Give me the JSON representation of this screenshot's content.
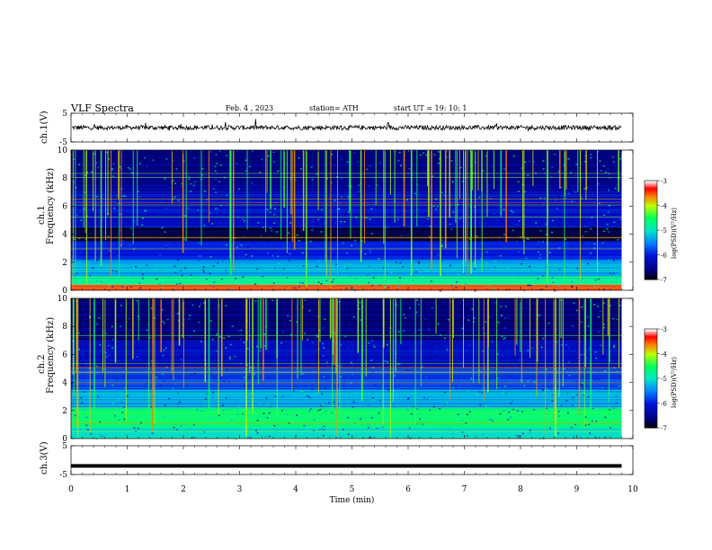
{
  "header": {
    "title": "VLF Spectra",
    "date": "Feb. 4 , 2023",
    "station": "station= ATH",
    "start_ut": "start UT = 19: 10: 1"
  },
  "panels": {
    "ch1_waveform": {
      "ylabel": "ch.1(V)",
      "ticks": [
        "5",
        "-5"
      ],
      "ylim": [
        -5,
        5
      ]
    },
    "ch1_spectrogram": {
      "ylabel_top": "ch.1",
      "ylabel_bottom": "Frequency (kHz)",
      "ticks": [
        "10",
        "8",
        "6",
        "4",
        "2",
        "0"
      ],
      "ylim": [
        0,
        10
      ]
    },
    "ch2_spectrogram": {
      "ylabel_top": "ch.2",
      "ylabel_bottom": "Frequency (kHz)",
      "ticks": [
        "10",
        "8",
        "6",
        "4",
        "2",
        "0"
      ],
      "ylim": [
        0,
        10
      ]
    },
    "ch3_waveform": {
      "ylabel": "ch.3(V)",
      "ticks": [
        "5",
        "-5"
      ],
      "ylim": [
        -5,
        5
      ]
    }
  },
  "colorbar": {
    "label": "log(PSD)(V²/Hz)",
    "ticks": [
      "-3",
      "-4",
      "-5",
      "-6",
      "-7"
    ],
    "range": [
      -7,
      -3
    ],
    "colors": [
      "#000000",
      "#0000c8",
      "#00a0ff",
      "#00ff80",
      "#c8ff00",
      "#ff0000",
      "#ffffff"
    ]
  },
  "chart_data": {
    "type": "heatmap",
    "title": "VLF Spectra",
    "xlabel": "Time (min)",
    "xlim": [
      0,
      10
    ],
    "x_ticks": [
      "0",
      "1",
      "2",
      "3",
      "4",
      "5",
      "6",
      "7",
      "8",
      "9",
      "10"
    ],
    "data_end_min": 9.8,
    "channels": [
      {
        "name": "ch.1",
        "freq_range_khz": [
          0,
          10
        ],
        "bands": [
          {
            "freq_khz": [
              0.0,
              0.4
            ],
            "log_psd": -3.5
          },
          {
            "freq_khz": [
              0.4,
              1.0
            ],
            "log_psd": -4.8
          },
          {
            "freq_khz": [
              1.0,
              2.2
            ],
            "log_psd": -5.3
          },
          {
            "freq_khz": [
              2.2,
              3.5
            ],
            "log_psd": -6.0
          },
          {
            "freq_khz": [
              3.5,
              4.5
            ],
            "log_psd": -6.8
          },
          {
            "freq_khz": [
              4.5,
              7.0
            ],
            "log_psd": -6.2
          },
          {
            "freq_khz": [
              7.0,
              10.0
            ],
            "log_psd": -6.5
          }
        ]
      },
      {
        "name": "ch.2",
        "freq_range_khz": [
          0,
          10
        ],
        "bands": [
          {
            "freq_khz": [
              0.0,
              0.8
            ],
            "log_psd": -5.0
          },
          {
            "freq_khz": [
              0.8,
              2.2
            ],
            "log_psd": -4.6
          },
          {
            "freq_khz": [
              2.2,
              3.5
            ],
            "log_psd": -5.3
          },
          {
            "freq_khz": [
              3.5,
              5.0
            ],
            "log_psd": -5.8
          },
          {
            "freq_khz": [
              5.0,
              7.0
            ],
            "log_psd": -6.2
          },
          {
            "freq_khz": [
              7.0,
              10.0
            ],
            "log_psd": -6.6
          }
        ]
      }
    ],
    "waveforms": [
      {
        "name": "ch.1(V)",
        "ylim": [
          -5,
          5
        ],
        "mean_v": 0.0,
        "noise_amplitude_v": 1.2
      },
      {
        "name": "ch.3(V)",
        "ylim": [
          -5,
          5
        ],
        "constant_v": -2.0
      }
    ]
  }
}
